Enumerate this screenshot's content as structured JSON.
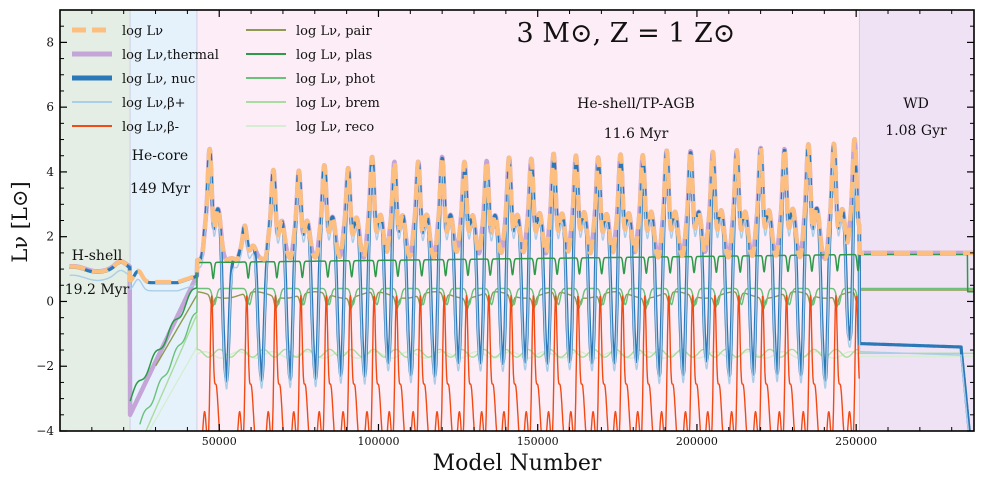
{
  "chart_data": {
    "type": "line",
    "title": "3 M⊙, Z = 1 Z⊙",
    "xlabel": "Model Number",
    "ylabel": "Lν [L⊙]",
    "xlim": [
      0,
      287000
    ],
    "ylim": [
      -4,
      9
    ],
    "x_ticks": [
      50000,
      100000,
      150000,
      200000,
      250000
    ],
    "x_tick_labels": [
      "50000",
      "100000",
      "150000",
      "200000",
      "250000"
    ],
    "y_ticks": [
      -4,
      -2,
      0,
      2,
      4,
      6,
      8
    ],
    "y_tick_labels": [
      "−4",
      "−2",
      "0",
      "2",
      "4",
      "6",
      "8"
    ],
    "grid": false,
    "legend_position": "top-left",
    "phases": [
      {
        "name": "H-shell",
        "duration": "19.2 Myr",
        "x_start": 0,
        "x_end": 22000,
        "color": "#e4eee4"
      },
      {
        "name": "He-core",
        "duration": "149 Myr",
        "x_start": 22000,
        "x_end": 43000,
        "color": "#e6f2fb"
      },
      {
        "name": "He-shell/TP-AGB",
        "duration": "11.6 Myr",
        "x_start": 43000,
        "x_end": 251000,
        "color": "#fcedf6"
      },
      {
        "name": "WD",
        "duration": "1.08 Gyr",
        "x_start": 251000,
        "x_end": 287000,
        "color": "#efe2f5"
      }
    ],
    "pulses": {
      "x": [
        47000,
        58000,
        67000,
        75000,
        83000,
        90500,
        98000,
        105000,
        112500,
        120000,
        127000,
        134000,
        141000,
        148000,
        155000,
        162000,
        169000,
        176000,
        183000,
        190500,
        198000,
        205000,
        212500,
        220000,
        227500,
        235000,
        243000,
        249500
      ],
      "total_peak": [
        4.7,
        2.3,
        4.0,
        4.0,
        4.2,
        4.1,
        4.4,
        4.3,
        4.3,
        4.4,
        4.3,
        4.3,
        4.4,
        4.4,
        4.5,
        4.5,
        4.4,
        4.5,
        4.5,
        4.6,
        4.6,
        4.6,
        4.6,
        4.7,
        4.7,
        4.8,
        4.8,
        5.0
      ]
    },
    "series": [
      {
        "name": "log Lν",
        "color": "#fdbf7f",
        "style": "dashed"
      },
      {
        "name": "log Lν,thermal",
        "color": "#c3a5d8",
        "style": "solid"
      },
      {
        "name": "log Lν, nuc",
        "color": "#2a78b7",
        "style": "solid"
      },
      {
        "name": "log Lν,β+",
        "color": "#aacde8",
        "style": "solid"
      },
      {
        "name": "log Lν,β-",
        "color": "#f24a14",
        "style": "solid"
      },
      {
        "name": "log Lν, pair",
        "color": "#8e9a52",
        "style": "solid"
      },
      {
        "name": "log Lν, plas",
        "color": "#2c9a48",
        "style": "solid"
      },
      {
        "name": "log Lν, phot",
        "color": "#69c17a",
        "style": "solid"
      },
      {
        "name": "log Lν, brem",
        "color": "#a9dc9f",
        "style": "solid"
      },
      {
        "name": "log Lν, reco",
        "color": "#d5eed3",
        "style": "solid"
      }
    ],
    "levels": {
      "tpagb_baseline": 1.3,
      "tpagb_interpulse_min": -2.5,
      "plasmon_tpagb": 1.3,
      "photo_tpagb": 0.4,
      "brems_tpagb": -1.6,
      "pair_tpagb": 0.2,
      "wd_total": 1.5,
      "wd_nuc": -1.3,
      "wd_phot": 0.4,
      "wd_brem": -1.6,
      "hshell_total": 1.0,
      "hecore_total": 0.6
    }
  }
}
